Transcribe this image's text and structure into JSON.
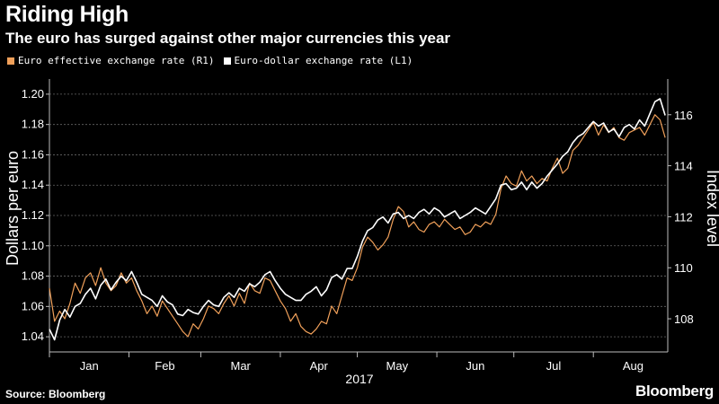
{
  "chart_data": {
    "type": "line",
    "title": "Riding High",
    "subtitle": "The euro has surged against other major currencies this year",
    "xlabel": "2017",
    "ylabel_left": "Dollars per euro",
    "ylabel_right": "Index level",
    "ylim_left": [
      1.03,
      1.21
    ],
    "ylim_right": [
      106.7,
      117.4
    ],
    "y_ticks_left": [
      "1.04",
      "1.06",
      "1.08",
      "1.10",
      "1.12",
      "1.14",
      "1.16",
      "1.18",
      "1.20"
    ],
    "y_ticks_right": [
      "108",
      "110",
      "112",
      "114",
      "116"
    ],
    "x_ticks": [
      "Jan",
      "Feb",
      "Mar",
      "Apr",
      "May",
      "Jun",
      "Jul",
      "Aug"
    ],
    "x_range_days": [
      1,
      242
    ],
    "series": [
      {
        "name": "Euro effective exchange rate  (R1)",
        "axis": "right",
        "color": "#f0a05a",
        "x": [
          1,
          3,
          5,
          7,
          9,
          11,
          13,
          15,
          17,
          19,
          21,
          23,
          25,
          27,
          29,
          31,
          33,
          35,
          37,
          39,
          41,
          43,
          45,
          47,
          49,
          51,
          53,
          55,
          57,
          59,
          61,
          63,
          65,
          67,
          69,
          71,
          73,
          75,
          77,
          79,
          81,
          83,
          85,
          87,
          89,
          91,
          93,
          95,
          97,
          99,
          101,
          103,
          105,
          107,
          109,
          111,
          113,
          115,
          117,
          119,
          121,
          123,
          125,
          127,
          129,
          131,
          133,
          135,
          137,
          139,
          141,
          143,
          145,
          147,
          149,
          151,
          153,
          155,
          157,
          159,
          161,
          163,
          165,
          167,
          169,
          171,
          173,
          175,
          177,
          179,
          181,
          183,
          185,
          187,
          189,
          191,
          193,
          195,
          197,
          199,
          201,
          203,
          205,
          207,
          209,
          211,
          213,
          215,
          217,
          219,
          221,
          223,
          225,
          227,
          229,
          231,
          233,
          235,
          237,
          239,
          241
        ],
        "values": [
          109.2,
          107.9,
          108.3,
          108.0,
          108.6,
          109.4,
          109.0,
          109.6,
          109.8,
          109.3,
          110.0,
          109.4,
          109.1,
          109.3,
          109.8,
          109.4,
          109.6,
          109.1,
          108.7,
          108.2,
          108.5,
          108.1,
          108.7,
          108.4,
          108.1,
          107.8,
          107.5,
          107.3,
          107.8,
          107.6,
          108.0,
          108.5,
          108.4,
          108.2,
          108.6,
          108.9,
          108.5,
          109.0,
          108.6,
          109.4,
          109.1,
          109.0,
          109.6,
          109.5,
          109.1,
          108.7,
          108.4,
          107.9,
          108.2,
          107.7,
          107.5,
          107.4,
          107.6,
          107.9,
          107.8,
          108.5,
          108.2,
          108.9,
          109.6,
          109.5,
          110.0,
          110.8,
          111.2,
          111.0,
          110.7,
          110.9,
          111.2,
          111.9,
          112.4,
          112.2,
          111.6,
          111.8,
          111.5,
          111.4,
          111.7,
          111.8,
          111.6,
          111.9,
          111.7,
          111.5,
          111.6,
          111.3,
          111.4,
          111.7,
          111.6,
          111.8,
          111.7,
          112.1,
          113.1,
          113.6,
          113.3,
          113.2,
          113.8,
          113.4,
          113.6,
          113.3,
          113.5,
          113.4,
          113.9,
          114.3,
          113.7,
          113.9,
          114.6,
          114.8,
          115.1,
          115.4,
          115.7,
          115.2,
          115.6,
          115.3,
          115.5,
          115.1,
          115.0,
          115.3,
          115.4,
          115.5,
          115.2,
          115.6,
          116.0,
          115.8,
          115.1
        ]
      },
      {
        "name": "Euro-dollar exchange rate  (L1)",
        "axis": "left",
        "color": "#ffffff",
        "x": [
          1,
          3,
          5,
          7,
          9,
          11,
          13,
          15,
          17,
          19,
          21,
          23,
          25,
          27,
          29,
          31,
          33,
          35,
          37,
          39,
          41,
          43,
          45,
          47,
          49,
          51,
          53,
          55,
          57,
          59,
          61,
          63,
          65,
          67,
          69,
          71,
          73,
          75,
          77,
          79,
          81,
          83,
          85,
          87,
          89,
          91,
          93,
          95,
          97,
          99,
          101,
          103,
          105,
          107,
          109,
          111,
          113,
          115,
          117,
          119,
          121,
          123,
          125,
          127,
          129,
          131,
          133,
          135,
          137,
          139,
          141,
          143,
          145,
          147,
          149,
          151,
          153,
          155,
          157,
          159,
          161,
          163,
          165,
          167,
          169,
          171,
          173,
          175,
          177,
          179,
          181,
          183,
          185,
          187,
          189,
          191,
          193,
          195,
          197,
          199,
          201,
          203,
          205,
          207,
          209,
          211,
          213,
          215,
          217,
          219,
          221,
          223,
          225,
          227,
          229,
          231,
          233,
          235,
          237,
          239,
          241
        ],
        "values": [
          1.045,
          1.038,
          1.051,
          1.058,
          1.053,
          1.06,
          1.062,
          1.068,
          1.072,
          1.065,
          1.074,
          1.078,
          1.071,
          1.076,
          1.08,
          1.077,
          1.083,
          1.076,
          1.068,
          1.066,
          1.064,
          1.06,
          1.067,
          1.063,
          1.061,
          1.055,
          1.054,
          1.058,
          1.056,
          1.055,
          1.06,
          1.064,
          1.061,
          1.06,
          1.066,
          1.069,
          1.066,
          1.072,
          1.07,
          1.075,
          1.073,
          1.076,
          1.081,
          1.083,
          1.077,
          1.072,
          1.068,
          1.066,
          1.064,
          1.064,
          1.068,
          1.07,
          1.073,
          1.067,
          1.071,
          1.079,
          1.081,
          1.078,
          1.085,
          1.085,
          1.093,
          1.103,
          1.11,
          1.112,
          1.117,
          1.119,
          1.115,
          1.121,
          1.122,
          1.118,
          1.12,
          1.118,
          1.122,
          1.124,
          1.121,
          1.125,
          1.123,
          1.119,
          1.121,
          1.123,
          1.118,
          1.12,
          1.122,
          1.125,
          1.123,
          1.121,
          1.126,
          1.131,
          1.14,
          1.141,
          1.137,
          1.138,
          1.142,
          1.137,
          1.142,
          1.138,
          1.141,
          1.146,
          1.15,
          1.154,
          1.159,
          1.162,
          1.168,
          1.172,
          1.174,
          1.178,
          1.182,
          1.179,
          1.181,
          1.175,
          1.177,
          1.172,
          1.178,
          1.18,
          1.177,
          1.183,
          1.179,
          1.187,
          1.195,
          1.197,
          1.186
        ]
      }
    ]
  },
  "footer": {
    "source": "Source: Bloomberg",
    "brand": "Bloomberg"
  }
}
